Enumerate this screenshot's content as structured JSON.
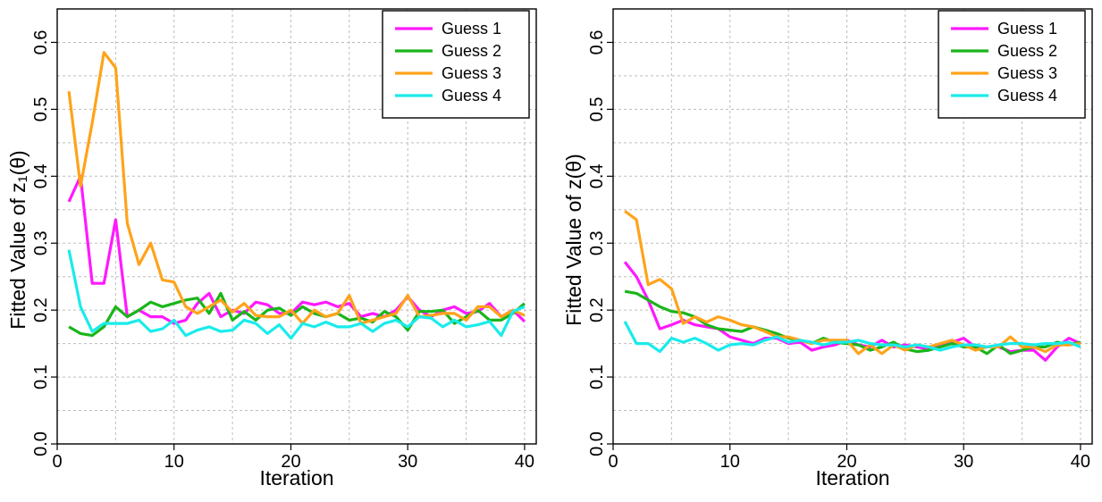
{
  "chart_data": [
    {
      "type": "line",
      "title": "",
      "xlabel": "Iteration",
      "ylabel": "Fitted Value of z₁(θ)",
      "xlim": [
        0,
        41
      ],
      "ylim": [
        0,
        0.65
      ],
      "xticks": [
        0,
        10,
        20,
        30,
        40
      ],
      "yticks": [
        0.0,
        0.1,
        0.2,
        0.3,
        0.4,
        0.5,
        0.6
      ],
      "xtick_labels": [
        "0",
        "10",
        "20",
        "30",
        "40"
      ],
      "ytick_labels": [
        "0.0",
        "0.1",
        "0.2",
        "0.3",
        "0.4",
        "0.5",
        "0.6"
      ],
      "grid": true,
      "legend_position": "top-right",
      "x": [
        1,
        2,
        3,
        4,
        5,
        6,
        7,
        8,
        9,
        10,
        11,
        12,
        13,
        14,
        15,
        16,
        17,
        18,
        19,
        20,
        21,
        22,
        23,
        24,
        25,
        26,
        27,
        28,
        29,
        30,
        31,
        32,
        33,
        34,
        35,
        36,
        37,
        38,
        39,
        40
      ],
      "series": [
        {
          "name": "Guess 1",
          "color": "#ff19ff",
          "values": [
            0.362,
            0.4,
            0.24,
            0.24,
            0.335,
            0.19,
            0.2,
            0.19,
            0.19,
            0.18,
            0.185,
            0.21,
            0.225,
            0.19,
            0.2,
            0.195,
            0.212,
            0.208,
            0.195,
            0.195,
            0.212,
            0.208,
            0.212,
            0.205,
            0.21,
            0.19,
            0.195,
            0.19,
            0.2,
            0.22,
            0.2,
            0.19,
            0.2,
            0.205,
            0.195,
            0.198,
            0.21,
            0.19,
            0.2,
            0.183
          ]
        },
        {
          "name": "Guess 2",
          "color": "#1ab51a",
          "values": [
            0.175,
            0.165,
            0.162,
            0.175,
            0.205,
            0.19,
            0.2,
            0.212,
            0.205,
            0.21,
            0.215,
            0.218,
            0.195,
            0.225,
            0.185,
            0.198,
            0.185,
            0.2,
            0.203,
            0.192,
            0.205,
            0.195,
            0.19,
            0.195,
            0.185,
            0.188,
            0.182,
            0.198,
            0.19,
            0.17,
            0.198,
            0.198,
            0.2,
            0.18,
            0.19,
            0.2,
            0.185,
            0.185,
            0.195,
            0.21
          ]
        },
        {
          "name": "Guess 3",
          "color": "#ffa31a",
          "values": [
            0.527,
            0.385,
            0.48,
            0.585,
            0.562,
            0.33,
            0.268,
            0.3,
            0.245,
            0.242,
            0.205,
            0.195,
            0.205,
            0.215,
            0.197,
            0.21,
            0.192,
            0.19,
            0.19,
            0.2,
            0.18,
            0.2,
            0.19,
            0.195,
            0.222,
            0.18,
            0.185,
            0.19,
            0.195,
            0.222,
            0.19,
            0.192,
            0.195,
            0.195,
            0.185,
            0.205,
            0.205,
            0.19,
            0.2,
            0.192
          ]
        },
        {
          "name": "Guess 4",
          "color": "#1aebeb",
          "values": [
            0.29,
            0.205,
            0.168,
            0.18,
            0.18,
            0.18,
            0.185,
            0.168,
            0.172,
            0.185,
            0.162,
            0.17,
            0.175,
            0.168,
            0.17,
            0.185,
            0.18,
            0.165,
            0.178,
            0.158,
            0.18,
            0.175,
            0.182,
            0.175,
            0.175,
            0.18,
            0.168,
            0.18,
            0.185,
            0.175,
            0.19,
            0.188,
            0.175,
            0.185,
            0.175,
            0.178,
            0.183,
            0.162,
            0.198,
            0.205
          ]
        }
      ]
    },
    {
      "type": "line",
      "title": "",
      "xlabel": "Iteration",
      "ylabel": "Fitted Value of z(θ)",
      "xlim": [
        0,
        41
      ],
      "ylim": [
        0,
        0.65
      ],
      "xticks": [
        0,
        10,
        20,
        30,
        40
      ],
      "yticks": [
        0.0,
        0.1,
        0.2,
        0.3,
        0.4,
        0.5,
        0.6
      ],
      "xtick_labels": [
        "0",
        "10",
        "20",
        "30",
        "40"
      ],
      "ytick_labels": [
        "0.0",
        "0.1",
        "0.2",
        "0.3",
        "0.4",
        "0.5",
        "0.6"
      ],
      "grid": true,
      "legend_position": "top-right",
      "x": [
        1,
        2,
        3,
        4,
        5,
        6,
        7,
        8,
        9,
        10,
        11,
        12,
        13,
        14,
        15,
        16,
        17,
        18,
        19,
        20,
        21,
        22,
        23,
        24,
        25,
        26,
        27,
        28,
        29,
        30,
        31,
        32,
        33,
        34,
        35,
        36,
        37,
        38,
        39,
        40
      ],
      "series": [
        {
          "name": "Guess 1",
          "color": "#ff19ff",
          "values": [
            0.272,
            0.25,
            0.215,
            0.172,
            0.178,
            0.185,
            0.178,
            0.175,
            0.172,
            0.16,
            0.155,
            0.15,
            0.158,
            0.158,
            0.15,
            0.152,
            0.14,
            0.145,
            0.148,
            0.155,
            0.148,
            0.145,
            0.155,
            0.145,
            0.148,
            0.145,
            0.142,
            0.148,
            0.152,
            0.158,
            0.145,
            0.145,
            0.145,
            0.138,
            0.14,
            0.14,
            0.125,
            0.145,
            0.158,
            0.15
          ]
        },
        {
          "name": "Guess 2",
          "color": "#1ab51a",
          "values": [
            0.228,
            0.225,
            0.215,
            0.205,
            0.198,
            0.196,
            0.19,
            0.178,
            0.172,
            0.17,
            0.168,
            0.175,
            0.17,
            0.165,
            0.158,
            0.155,
            0.15,
            0.158,
            0.152,
            0.15,
            0.148,
            0.14,
            0.145,
            0.152,
            0.142,
            0.138,
            0.14,
            0.145,
            0.15,
            0.145,
            0.145,
            0.135,
            0.148,
            0.135,
            0.14,
            0.145,
            0.145,
            0.152,
            0.148,
            0.152
          ]
        },
        {
          "name": "Guess 3",
          "color": "#ffa31a",
          "values": [
            0.348,
            0.335,
            0.238,
            0.246,
            0.232,
            0.18,
            0.19,
            0.182,
            0.19,
            0.185,
            0.178,
            0.175,
            0.168,
            0.16,
            0.16,
            0.155,
            0.15,
            0.155,
            0.155,
            0.155,
            0.135,
            0.148,
            0.135,
            0.148,
            0.14,
            0.148,
            0.145,
            0.15,
            0.155,
            0.148,
            0.14,
            0.145,
            0.145,
            0.16,
            0.145,
            0.145,
            0.138,
            0.148,
            0.148,
            0.15
          ]
        },
        {
          "name": "Guess 4",
          "color": "#1aebeb",
          "values": [
            0.183,
            0.15,
            0.15,
            0.138,
            0.158,
            0.152,
            0.158,
            0.15,
            0.14,
            0.148,
            0.15,
            0.148,
            0.155,
            0.16,
            0.152,
            0.155,
            0.152,
            0.148,
            0.152,
            0.152,
            0.155,
            0.15,
            0.148,
            0.148,
            0.145,
            0.148,
            0.145,
            0.14,
            0.145,
            0.148,
            0.148,
            0.145,
            0.148,
            0.15,
            0.15,
            0.148,
            0.15,
            0.15,
            0.152,
            0.145
          ]
        }
      ]
    }
  ]
}
